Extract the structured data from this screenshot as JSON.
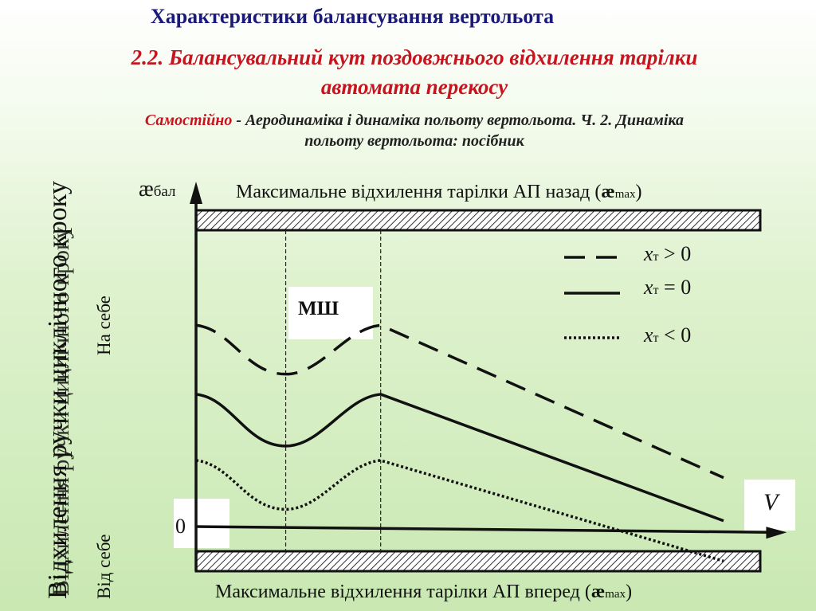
{
  "header": {
    "title": "Характеристики балансування вертольота",
    "subtitle_line1": "2.2. Балансувальний кут поздовжнього відхилення тарілки",
    "subtitle_line2": "автомата перекосу",
    "note_red": "Самостійно",
    "note_rest_line1": " - Аеродинаміка і динаміка польоту вертольота. Ч. 2. Динаміка",
    "note_line2": "польоту вертольота: посібник"
  },
  "colors": {
    "title": "#1a1a7a",
    "accent": "#c8141e"
  },
  "chart_data": {
    "type": "line",
    "title": "",
    "top_band_label": "Максимальне відхилення тарілки АП назад (",
    "top_band_label_sym": "æ",
    "top_band_label_sub": "max",
    "top_band_label_end": ")",
    "bottom_band_label": "Максимальне відхилення тарілки АП вперед (",
    "bottom_band_label_sym": "æ",
    "bottom_band_label_sub": "max",
    "bottom_band_label_end": ")",
    "ylabel_sym": "æ",
    "ylabel_sub": "бал",
    "xlabel": "V",
    "y_side_label": "Відхилення ручки циклічного кроку",
    "y_upper_label": "На себе",
    "y_lower_label": "Від себе",
    "zero_label": "0",
    "region_label": "МШ",
    "region_bounds": [
      0.17,
      0.35
    ],
    "x_range": [
      0,
      1
    ],
    "y_range": [
      -0.15,
      1.0
    ],
    "series": [
      {
        "name": "xт > 0",
        "style": "dashed",
        "x": [
          0,
          0.17,
          0.35,
          1.0
        ],
        "y": [
          0.7,
          0.53,
          0.7,
          0.17
        ]
      },
      {
        "name": "xт = 0",
        "style": "solid",
        "x": [
          0,
          0.17,
          0.35,
          1.0
        ],
        "y": [
          0.46,
          0.28,
          0.46,
          0.02
        ]
      },
      {
        "name": "xт < 0",
        "style": "dotted",
        "x": [
          0,
          0.17,
          0.35,
          1.0
        ],
        "y": [
          0.23,
          0.06,
          0.23,
          -0.12
        ]
      }
    ],
    "baseline": {
      "x": [
        0,
        1.12
      ],
      "y": [
        0.0,
        -0.02
      ]
    }
  },
  "legend": [
    {
      "var": "x",
      "sub": "т",
      "rel": " > 0"
    },
    {
      "var": "x",
      "sub": "т",
      "rel": " = 0"
    },
    {
      "var": "x",
      "sub": "т",
      "rel": " < 0"
    }
  ]
}
